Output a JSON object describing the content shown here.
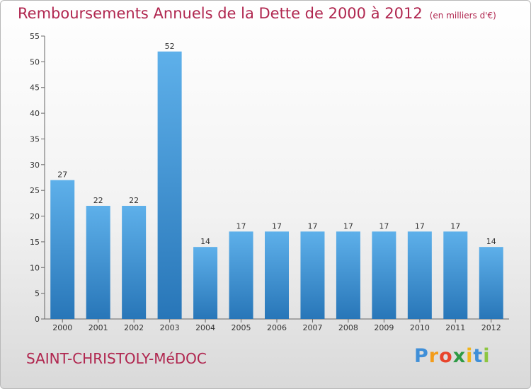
{
  "chart_data": {
    "type": "bar",
    "title": "Remboursements Annuels de la Dette de 2000 à 2012",
    "unit_note": "(en milliers d'€)",
    "categories": [
      "2000",
      "2001",
      "2002",
      "2003",
      "2004",
      "2005",
      "2006",
      "2007",
      "2008",
      "2009",
      "2010",
      "2011",
      "2012"
    ],
    "values": [
      27,
      22,
      22,
      52,
      14,
      17,
      17,
      17,
      17,
      17,
      17,
      17,
      14
    ],
    "ylim": [
      0,
      55
    ],
    "yticks": [
      0,
      5,
      10,
      15,
      20,
      25,
      30,
      35,
      40,
      45,
      50,
      55
    ],
    "xlabel": "",
    "ylabel": "",
    "bar_color_top": "#5eb0ea",
    "bar_color_bottom": "#2876b8"
  },
  "footer": {
    "commune": "SAINT-CHRISTOLY-MéDOC",
    "logo": {
      "letters": [
        "P",
        "r",
        "o",
        "x",
        "i",
        "t",
        "i"
      ],
      "colors": [
        "#3f8fd8",
        "#f39c1a",
        "#e8452c",
        "#2e9a45",
        "#f2b418",
        "#3f8fd8",
        "#8dc63f"
      ]
    }
  },
  "colors": {
    "accent": "#b0264f"
  }
}
